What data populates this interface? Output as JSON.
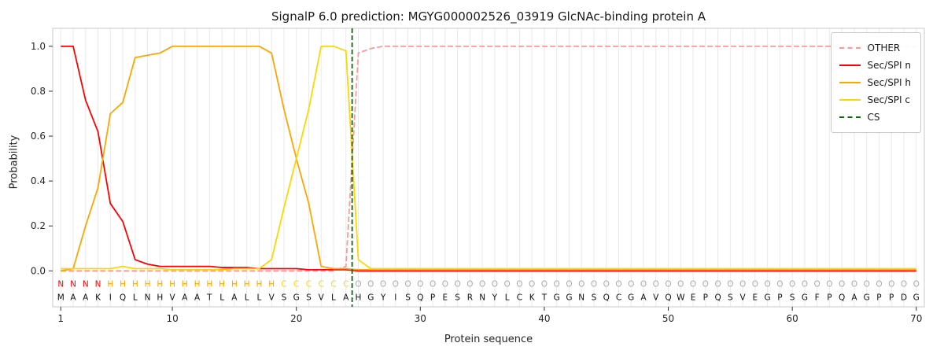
{
  "chart_data": {
    "type": "line",
    "title": "SignalP 6.0 prediction: MGYG000002526_03919 GlcNAc-binding protein A",
    "xlabel": "Protein sequence",
    "ylabel": "Probability",
    "x_start": 1,
    "x_ticks": [
      1,
      10,
      20,
      30,
      40,
      50,
      60,
      70
    ],
    "y_ticks": [
      0.0,
      0.2,
      0.4,
      0.6,
      0.8,
      1.0
    ],
    "xlim": [
      0.35,
      70.65
    ],
    "ylim": [
      -0.16,
      1.08
    ],
    "grid": "vertical-per-residue",
    "legend_position": "upper right",
    "sequence": "MAAKIQLNHVAATLALLVSGSVLAHGYISQPESRNYLCKTGGNSQCGAVQWEPQSVEGPSGFPQAGPPDG",
    "regions": "NNNNHHHHHHHHHHHHHHCCCCCCOOOOOOOOOOOOOOOOOOOOOOOOOOOOOOOOOOOOOOOOOOOOOO",
    "region_colors": {
      "N": "#ff0000",
      "H": "#ffa500",
      "C": "#ffd700",
      "O": "#ababab"
    },
    "sequence_color": "#111111",
    "cs_position": 24.5,
    "cs_label": "CS",
    "cs_color": "#0b6b0b",
    "series": [
      {
        "name": "OTHER",
        "color": "#ff9999",
        "dash": true,
        "values": [
          0,
          0,
          0,
          0,
          0,
          0,
          0,
          0,
          0,
          0,
          0,
          0,
          0,
          0,
          0,
          0,
          0,
          0,
          0,
          0,
          0,
          0,
          0,
          0.02,
          0.97,
          0.99,
          1,
          1,
          1,
          1,
          1,
          1,
          1,
          1,
          1,
          1,
          1,
          1,
          1,
          1,
          1,
          1,
          1,
          1,
          1,
          1,
          1,
          1,
          1,
          1,
          1,
          1,
          1,
          1,
          1,
          1,
          1,
          1,
          1,
          1,
          1,
          1,
          1,
          1,
          1,
          1,
          1,
          1,
          1,
          1
        ]
      },
      {
        "name": "Sec/SPI n",
        "color": "#ff0000",
        "dash": false,
        "values": [
          1,
          1,
          0.76,
          0.62,
          0.3,
          0.22,
          0.05,
          0.03,
          0.02,
          0.02,
          0.02,
          0.02,
          0.02,
          0.015,
          0.015,
          0.015,
          0.01,
          0.01,
          0.01,
          0.01,
          0.005,
          0.005,
          0.005,
          0.005,
          0,
          0,
          0,
          0,
          0,
          0,
          0,
          0,
          0,
          0,
          0,
          0,
          0,
          0,
          0,
          0,
          0,
          0,
          0,
          0,
          0,
          0,
          0,
          0,
          0,
          0,
          0,
          0,
          0,
          0,
          0,
          0,
          0,
          0,
          0,
          0,
          0,
          0,
          0,
          0,
          0,
          0,
          0,
          0,
          0,
          0
        ]
      },
      {
        "name": "Sec/SPI h",
        "color": "#ffa500",
        "dash": false,
        "values": [
          0,
          0.01,
          0.2,
          0.37,
          0.7,
          0.75,
          0.95,
          0.96,
          0.97,
          1,
          1,
          1,
          1,
          1,
          1,
          1,
          1,
          0.97,
          0.72,
          0.5,
          0.3,
          0.02,
          0.01,
          0.01,
          0.005,
          0.005,
          0.005,
          0.005,
          0.005,
          0.005,
          0.005,
          0.005,
          0.005,
          0.005,
          0.005,
          0.005,
          0.005,
          0.005,
          0.005,
          0.005,
          0.005,
          0.005,
          0.005,
          0.005,
          0.005,
          0.005,
          0.005,
          0.005,
          0.005,
          0.005,
          0.005,
          0.005,
          0.005,
          0.005,
          0.005,
          0.005,
          0.005,
          0.005,
          0.005,
          0.005,
          0.005,
          0.005,
          0.005,
          0.005,
          0.005,
          0.005,
          0.005,
          0.005,
          0.005,
          0.005
        ]
      },
      {
        "name": "Sec/SPI c",
        "color": "#ffd700",
        "dash": false,
        "values": [
          0.01,
          0.01,
          0.01,
          0.01,
          0.01,
          0.02,
          0.01,
          0.01,
          0.01,
          0.005,
          0.005,
          0.005,
          0.005,
          0.005,
          0.01,
          0.01,
          0.01,
          0.05,
          0.28,
          0.5,
          0.72,
          1,
          1,
          0.98,
          0.05,
          0.01,
          0.01,
          0.01,
          0.01,
          0.01,
          0.01,
          0.01,
          0.01,
          0.01,
          0.01,
          0.01,
          0.01,
          0.01,
          0.01,
          0.01,
          0.01,
          0.01,
          0.01,
          0.01,
          0.01,
          0.01,
          0.01,
          0.01,
          0.01,
          0.01,
          0.01,
          0.01,
          0.01,
          0.01,
          0.01,
          0.01,
          0.01,
          0.01,
          0.01,
          0.01,
          0.01,
          0.01,
          0.01,
          0.01,
          0.01,
          0.01,
          0.01,
          0.01,
          0.01,
          0.01
        ]
      }
    ],
    "legend_items": [
      {
        "label": "OTHER",
        "color": "#ff9999",
        "dash": true
      },
      {
        "label": "Sec/SPI n",
        "color": "#ff0000",
        "dash": false
      },
      {
        "label": "Sec/SPI h",
        "color": "#ffa500",
        "dash": false
      },
      {
        "label": "Sec/SPI c",
        "color": "#ffd700",
        "dash": false
      },
      {
        "label": "CS",
        "color": "#0b6b0b",
        "dash": true
      }
    ]
  }
}
